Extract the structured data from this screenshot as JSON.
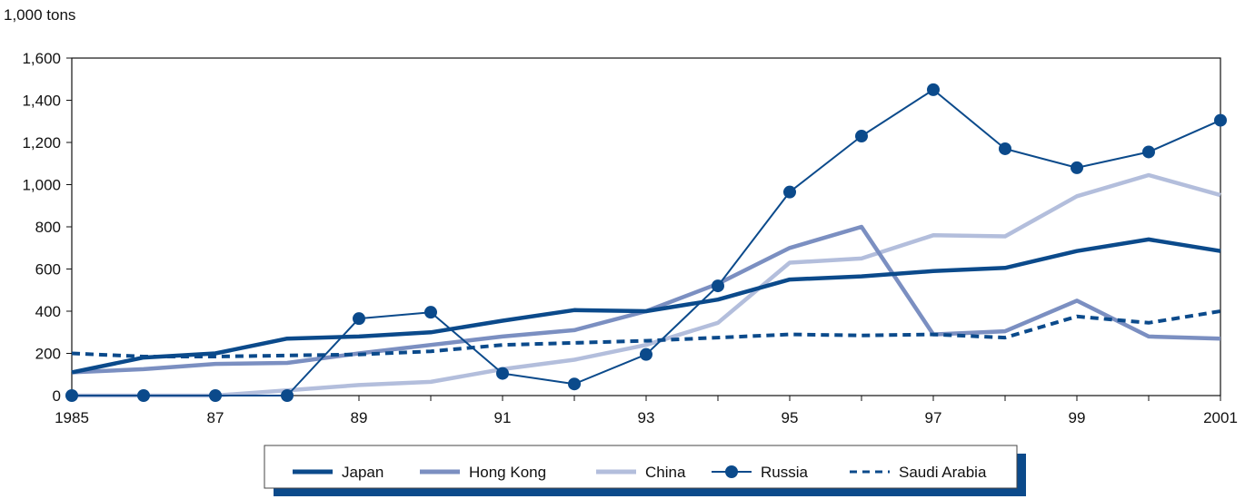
{
  "chart_data": {
    "type": "line",
    "unit_label": "1,000 tons",
    "title": "",
    "xlabel": "",
    "ylabel": "",
    "x": [
      1985,
      1986,
      1987,
      1988,
      1989,
      1990,
      1991,
      1992,
      1993,
      1994,
      1995,
      1996,
      1997,
      1998,
      1999,
      2000,
      2001
    ],
    "x_tick_values": [
      1985,
      1987,
      1989,
      1991,
      1993,
      1995,
      1997,
      1999,
      2001
    ],
    "x_tick_labels": [
      "1985",
      "87",
      "89",
      "91",
      "93",
      "95",
      "97",
      "99",
      "2001"
    ],
    "ylim": [
      0,
      1600
    ],
    "y_ticks": [
      0,
      200,
      400,
      600,
      800,
      1000,
      1200,
      1400,
      1600
    ],
    "y_tick_labels": [
      "0",
      "200",
      "400",
      "600",
      "800",
      "1,000",
      "1,200",
      "1,400",
      "1,600"
    ],
    "grid": false,
    "legend_position": "bottom-center",
    "series": [
      {
        "name": "Japan",
        "color": "#0b4a8b",
        "style": "solid-thick",
        "values": [
          110,
          180,
          200,
          270,
          280,
          300,
          355,
          405,
          400,
          455,
          550,
          565,
          590,
          605,
          685,
          740,
          685
        ]
      },
      {
        "name": "Hong Kong",
        "color": "#7b8fc1",
        "style": "solid-thick",
        "values": [
          110,
          125,
          150,
          155,
          200,
          240,
          280,
          310,
          400,
          530,
          700,
          800,
          290,
          305,
          450,
          280,
          270
        ]
      },
      {
        "name": "China",
        "color": "#b3bedc",
        "style": "solid-thick",
        "values": [
          0,
          0,
          0,
          25,
          50,
          65,
          125,
          170,
          240,
          345,
          630,
          650,
          760,
          755,
          945,
          1045,
          950
        ]
      },
      {
        "name": "Russia",
        "color": "#0b4a8b",
        "style": "marker",
        "values": [
          0,
          0,
          0,
          0,
          365,
          395,
          105,
          55,
          195,
          520,
          965,
          1230,
          1450,
          1170,
          1080,
          1155,
          1305
        ]
      },
      {
        "name": "Saudi Arabia",
        "color": "#0b4a8b",
        "style": "dashed",
        "values": [
          200,
          185,
          185,
          190,
          195,
          210,
          240,
          250,
          260,
          275,
          290,
          285,
          290,
          275,
          375,
          345,
          400
        ]
      }
    ]
  }
}
